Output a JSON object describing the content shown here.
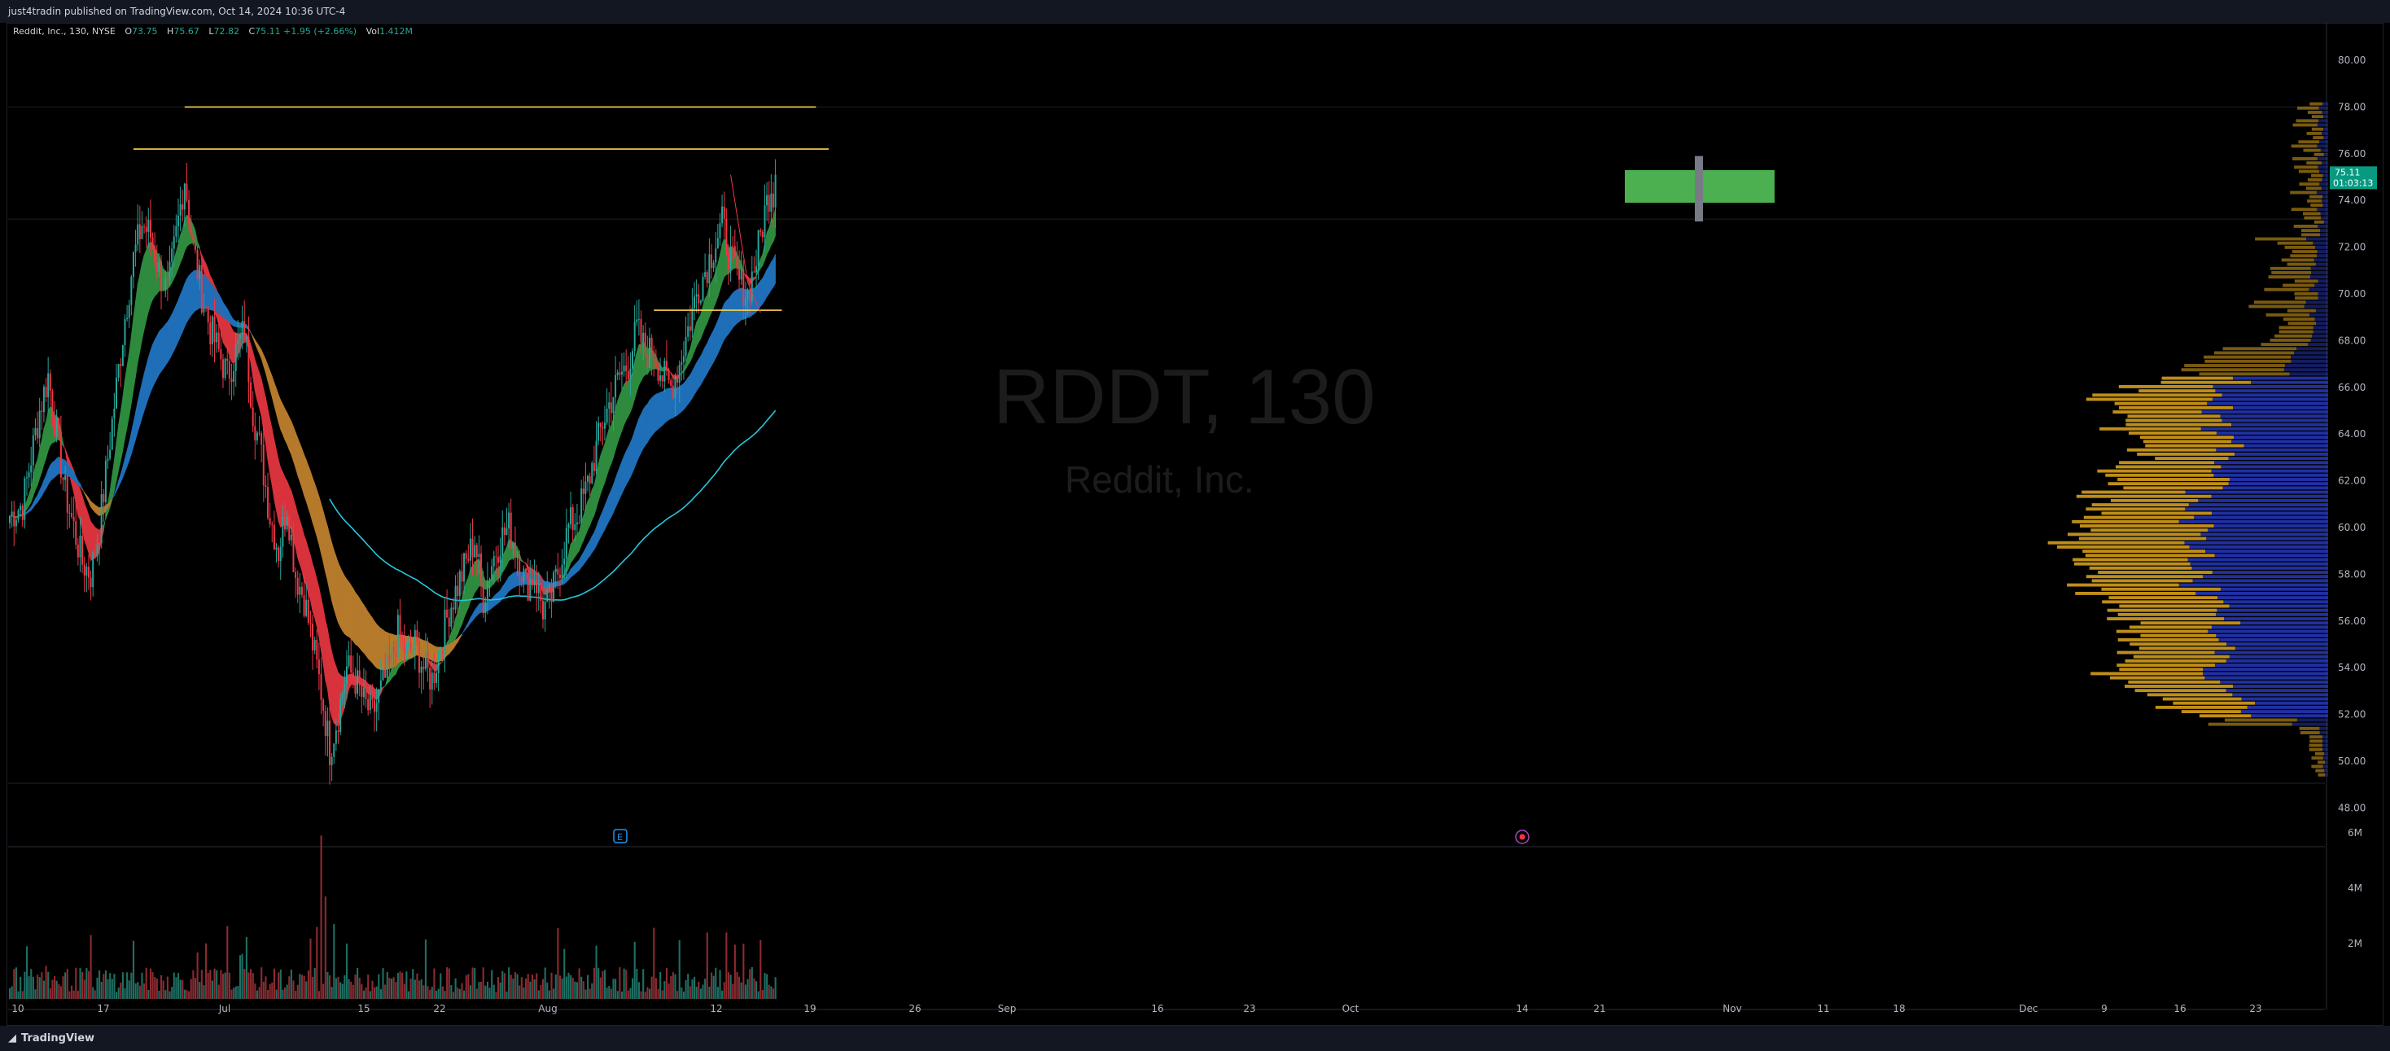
{
  "header": {
    "published": "just4tradin published on TradingView.com, Oct 14, 2024 10:36 UTC-4"
  },
  "legend": {
    "symbol": "Reddit, Inc., 130, NYSE",
    "o_label": "O",
    "o": "73.75",
    "h_label": "H",
    "h": "75.67",
    "l_label": "L",
    "l": "72.82",
    "c_label": "C",
    "c": "75.11 +1.95 (+2.66%)",
    "vol_label": "Vol",
    "vol": "1.412M"
  },
  "watermark": {
    "ticker": "RDDT, 130",
    "name": "Reddit, Inc."
  },
  "footer": {
    "brand": "TradingView"
  },
  "colors": {
    "up": "#26a69a",
    "down": "#f23645",
    "vol_up": "#1e6f63",
    "vol_down": "#8c2b31",
    "ribbon_green": "#2e8b3e",
    "ribbon_red": "#d8323d",
    "ribbon_blue": "#1f6fb8",
    "ribbon_orange": "#b57a2b",
    "ma_line": "#26c6da",
    "level_line": "#ffd54f",
    "vp_up": "#c9961a",
    "vp_down": "#2233aa",
    "price_badge": "#089981"
  },
  "chart_data": {
    "type": "candlestick",
    "title": "Reddit, Inc., 130, NYSE",
    "ylim": [
      47,
      81
    ],
    "y_ticks": [
      "80.00",
      "78.00",
      "76.00",
      "74.00",
      "72.00",
      "70.00",
      "68.00",
      "66.00",
      "64.00",
      "62.00",
      "60.00",
      "58.00",
      "56.00",
      "54.00",
      "52.00",
      "50.00",
      "48.00"
    ],
    "volume_ticks": [
      "6M",
      "4M",
      "2M"
    ],
    "x_ticks": [
      "10",
      "17",
      "Jul",
      "15",
      "22",
      "Aug",
      "12",
      "19",
      "26",
      "Sep",
      "16",
      "23",
      "Oct",
      "14",
      "21",
      "Nov",
      "11",
      "18",
      "Dec",
      "9",
      "16",
      "23"
    ],
    "last_price": "75.11",
    "countdown": "01:03:13",
    "price_path": [
      [
        0,
        60.5
      ],
      [
        6,
        61
      ],
      [
        10,
        63
      ],
      [
        14,
        65
      ],
      [
        18,
        66.5
      ],
      [
        22,
        64
      ],
      [
        26,
        61.5
      ],
      [
        30,
        60
      ],
      [
        34,
        58.5
      ],
      [
        38,
        58
      ],
      [
        42,
        60
      ],
      [
        46,
        63
      ],
      [
        50,
        66
      ],
      [
        54,
        69
      ],
      [
        58,
        71.5
      ],
      [
        62,
        73
      ],
      [
        66,
        72.5
      ],
      [
        70,
        71
      ],
      [
        74,
        70
      ],
      [
        78,
        72.5
      ],
      [
        82,
        75
      ],
      [
        86,
        72
      ],
      [
        90,
        70
      ],
      [
        94,
        68.5
      ],
      [
        98,
        67.5
      ],
      [
        102,
        66.5
      ],
      [
        106,
        67.5
      ],
      [
        110,
        68.5
      ],
      [
        114,
        65
      ],
      [
        118,
        63
      ],
      [
        122,
        60.5
      ],
      [
        126,
        59
      ],
      [
        130,
        61
      ],
      [
        134,
        58
      ],
      [
        138,
        57
      ],
      [
        142,
        55
      ],
      [
        146,
        53
      ],
      [
        150,
        50.5
      ],
      [
        154,
        52
      ],
      [
        158,
        54
      ],
      [
        162,
        53.5
      ],
      [
        166,
        52.5
      ],
      [
        170,
        52
      ],
      [
        174,
        53
      ],
      [
        178,
        54
      ],
      [
        182,
        55.5
      ],
      [
        186,
        54.5
      ],
      [
        190,
        55
      ],
      [
        194,
        54
      ],
      [
        198,
        53.5
      ],
      [
        202,
        55
      ],
      [
        206,
        56.5
      ],
      [
        210,
        57.5
      ],
      [
        214,
        58.5
      ],
      [
        218,
        59.5
      ],
      [
        222,
        57
      ],
      [
        226,
        58.5
      ],
      [
        230,
        59.5
      ],
      [
        234,
        60
      ],
      [
        238,
        59
      ],
      [
        242,
        57.5
      ],
      [
        246,
        58
      ],
      [
        250,
        56.5
      ],
      [
        254,
        57
      ],
      [
        258,
        58.5
      ],
      [
        262,
        60
      ],
      [
        266,
        60.5
      ],
      [
        270,
        61.5
      ],
      [
        274,
        63
      ],
      [
        278,
        64.5
      ],
      [
        282,
        65.5
      ],
      [
        286,
        66.5
      ],
      [
        290,
        67
      ],
      [
        294,
        68.5
      ],
      [
        298,
        67.5
      ],
      [
        302,
        67.5
      ],
      [
        306,
        66.5
      ],
      [
        310,
        66
      ],
      [
        314,
        67
      ],
      [
        318,
        68.5
      ],
      [
        322,
        70
      ],
      [
        326,
        71
      ],
      [
        330,
        72
      ],
      [
        334,
        73
      ],
      [
        338,
        71.5
      ],
      [
        342,
        70.5
      ],
      [
        346,
        70
      ],
      [
        350,
        71.5
      ],
      [
        354,
        73.5
      ],
      [
        358,
        75.1
      ]
    ],
    "ribbons": [
      {
        "name": "",
        "start": 0,
        "end": 358,
        "color": "ribbon"
      },
      {
        "name": "",
        "start": 0,
        "end": 358,
        "color": "blue"
      }
    ],
    "ma_line": {
      "name": "",
      "start": 150,
      "end": 358
    },
    "levels": [
      {
        "price": 78.0,
        "from": 82,
        "to": 378
      },
      {
        "price": 76.2,
        "from": 58,
        "to": 384
      },
      {
        "price": 69.3,
        "from": 302,
        "to": 362
      }
    ],
    "position_box": {
      "upper": 75.3,
      "lower": 73.9,
      "entry_low": 73.1,
      "entry_high": 75.9
    },
    "volume_profile_rows": 160
  }
}
